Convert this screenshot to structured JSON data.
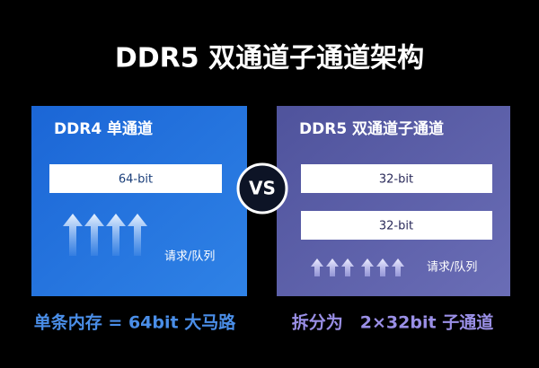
{
  "title": "DDR5 双通道子通道架构",
  "left": {
    "heading": "DDR4 单通道",
    "bars": [
      "64-bit"
    ],
    "queue": "请求/队列",
    "caption": "单条内存 = 64bit 大马路"
  },
  "vs": "VS",
  "right": {
    "heading": "DDR5 双通道子通道",
    "bars": [
      "32-bit",
      "32-bit"
    ],
    "queue": "请求/队列",
    "caption": "拆分为　2×32bit 子通道"
  }
}
